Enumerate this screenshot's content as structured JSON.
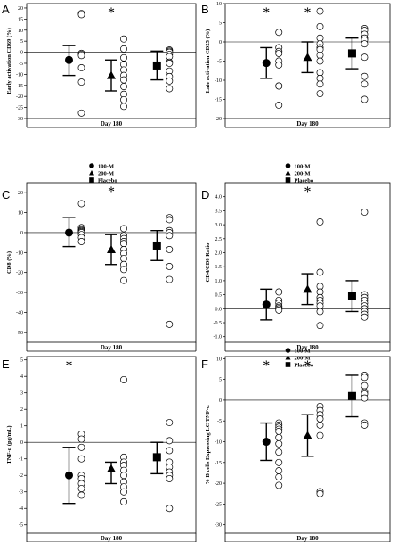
{
  "chart_data": [
    {
      "type": "scatter",
      "panel": "A",
      "ylabel": "Early activation CD69 (%)",
      "xlabel": "Day 180",
      "ylim": [
        -30,
        22
      ],
      "yticks": [
        20,
        15,
        10,
        5,
        0,
        -5,
        -10,
        -15,
        -20,
        -25,
        -30
      ],
      "ytick_labels": [
        "20",
        "15",
        "10",
        "5",
        "0",
        "-5",
        "-10",
        "-15",
        "-20",
        "-25",
        "-30"
      ],
      "stars": [
        1
      ],
      "groups": [
        {
          "name": "100-M",
          "marker": "circle",
          "mean": -3.5,
          "ci": [
            -10.5,
            3.0
          ],
          "points": [
            17.5,
            17.0,
            -0.5,
            -1.0,
            -1.5,
            -7.0,
            -13.5,
            -27.5
          ]
        },
        {
          "name": "200-M",
          "marker": "triangle",
          "mean": -10.5,
          "ci": [
            -17.5,
            -3.5
          ],
          "points": [
            6.0,
            1.5,
            -2.5,
            -5.5,
            -8.0,
            -10.5,
            -12.5,
            -15.5,
            -19.0,
            -21.5,
            -24.5
          ]
        },
        {
          "name": "Placebo",
          "marker": "square",
          "mean": -6.0,
          "ci": [
            -12.5,
            0.5
          ],
          "points": [
            1.0,
            0.5,
            0.0,
            -1.0,
            -2.0,
            -4.5,
            -5.0,
            -8.5,
            -11.0,
            -13.0,
            -16.5
          ]
        }
      ],
      "legend": [
        {
          "marker": "circle",
          "label": "100-M"
        },
        {
          "marker": "triangle",
          "label": "200-M"
        },
        {
          "marker": "square",
          "label": "Placebo"
        }
      ]
    },
    {
      "type": "scatter",
      "panel": "B",
      "ylabel": "Late activation CD25 (%)",
      "xlabel": "Day 180",
      "ylim": [
        -20,
        10
      ],
      "yticks": [
        10,
        5,
        0,
        -5,
        -10,
        -15,
        -20
      ],
      "ytick_labels": [
        "10",
        "5",
        "0",
        "-5",
        "-10",
        "-15",
        "-20"
      ],
      "stars": [
        0,
        1
      ],
      "groups": [
        {
          "name": "100-M",
          "marker": "circle",
          "mean": -5.5,
          "ci": [
            -9.5,
            -1.5
          ],
          "points": [
            2.5,
            -1.5,
            -2.5,
            -3.0,
            -5.0,
            -6.0,
            -11.5,
            -11.5,
            -16.5
          ]
        },
        {
          "name": "200-M",
          "marker": "triangle",
          "mean": -4.0,
          "ci": [
            -8.0,
            0.0
          ],
          "points": [
            8.0,
            4.0,
            1.0,
            -0.5,
            -1.5,
            -2.0,
            -3.5,
            -5.0,
            -8.0,
            -9.5,
            -11.0,
            -13.5
          ]
        },
        {
          "name": "Placebo",
          "marker": "square",
          "mean": -3.0,
          "ci": [
            -7.0,
            1.0
          ],
          "points": [
            3.5,
            3.0,
            2.0,
            1.0,
            0.5,
            -0.5,
            -4.0,
            -9.0,
            -11.0,
            -15.0
          ]
        }
      ],
      "legend": [
        {
          "marker": "circle",
          "label": "100-M"
        },
        {
          "marker": "triangle",
          "label": "200-M"
        },
        {
          "marker": "square",
          "label": "Placebo"
        }
      ]
    },
    {
      "type": "scatter",
      "panel": "C",
      "ylabel": "CD8 (%)",
      "xlabel": "Day 180",
      "ylim": [
        -55,
        25
      ],
      "yticks": [
        20,
        10,
        0,
        -10,
        -20,
        -30,
        -40,
        -50
      ],
      "ytick_labels": [
        "20",
        "10",
        "0",
        "-10",
        "-20",
        "-30",
        "-40",
        "-50"
      ],
      "stars": [
        1
      ],
      "groups": [
        {
          "name": "100-M",
          "marker": "circle",
          "mean": 0.0,
          "ci": [
            -7.0,
            7.5
          ],
          "points": [
            14.5,
            2.5,
            1.5,
            1.0,
            0.5,
            0.0,
            -1.0,
            -2.5,
            -4.5
          ]
        },
        {
          "name": "200-M",
          "marker": "triangle",
          "mean": -8.5,
          "ci": [
            -16.0,
            -1.0
          ],
          "points": [
            2.0,
            -1.5,
            -3.0,
            -4.5,
            -5.5,
            -8.5,
            -10.5,
            -13.0,
            -16.0,
            -18.5,
            -24.0
          ]
        },
        {
          "name": "Placebo",
          "marker": "square",
          "mean": -6.5,
          "ci": [
            -14.0,
            1.0
          ],
          "points": [
            7.5,
            6.5,
            1.0,
            0.0,
            -1.5,
            -8.5,
            -17.0,
            -23.5,
            -46.0
          ]
        }
      ],
      "legend": []
    },
    {
      "type": "scatter",
      "panel": "D",
      "ylabel": "CD4/CD8 Ratio",
      "xlabel": "Day 180",
      "ylim": [
        -1.2,
        4.5
      ],
      "yticks": [
        4.0,
        3.5,
        3.0,
        2.5,
        2.0,
        1.5,
        1.0,
        0.5,
        0.0,
        -0.5,
        -1.0
      ],
      "ytick_labels": [
        "4.0",
        "3.5",
        "3.0",
        "2.5",
        "2.0",
        "1.5",
        "1.0",
        "0.5",
        "0.0",
        "-0.5",
        "-1.0"
      ],
      "stars": [
        1
      ],
      "groups": [
        {
          "name": "100-M",
          "marker": "circle",
          "mean": 0.15,
          "ci": [
            -0.4,
            0.7
          ],
          "points": [
            0.6,
            0.3,
            0.2,
            0.1,
            0.05,
            0.0,
            -0.05
          ]
        },
        {
          "name": "200-M",
          "marker": "triangle",
          "mean": 0.7,
          "ci": [
            0.15,
            1.25
          ],
          "points": [
            3.1,
            1.3,
            0.8,
            0.6,
            0.4,
            0.3,
            0.2,
            0.1,
            -0.1,
            -0.6
          ]
        },
        {
          "name": "Placebo",
          "marker": "square",
          "mean": 0.45,
          "ci": [
            -0.1,
            1.0
          ],
          "points": [
            3.45,
            0.5,
            0.4,
            0.3,
            0.2,
            0.1,
            0.0,
            -0.1,
            -0.2,
            -0.3
          ]
        }
      ],
      "legend": [
        {
          "marker": "circle",
          "label": "100-M"
        },
        {
          "marker": "triangle",
          "label": "200-M"
        },
        {
          "marker": "square",
          "label": "Placebo"
        }
      ]
    },
    {
      "type": "scatter",
      "panel": "E",
      "ylabel": "TNF-α (pg/mL)",
      "xlabel": "Day 180",
      "ylim": [
        -5.5,
        5.2
      ],
      "yticks": [
        5,
        4,
        3,
        2,
        1,
        0,
        -1,
        -2,
        -3,
        -4,
        -5
      ],
      "ytick_labels": [
        "5",
        "4",
        "3",
        "2",
        "1",
        "0",
        "-1",
        "-2",
        "-3",
        "-4",
        "-5"
      ],
      "stars": [
        0
      ],
      "groups": [
        {
          "name": "100-M",
          "marker": "circle",
          "mean": -2.0,
          "ci": [
            -3.7,
            -0.3
          ],
          "points": [
            0.5,
            0.2,
            -0.3,
            -1.0,
            -2.0,
            -2.2,
            -2.5,
            -2.8,
            -3.2
          ]
        },
        {
          "name": "200-M",
          "marker": "triangle",
          "mean": -1.6,
          "ci": [
            -2.5,
            -1.2
          ],
          "points": [
            3.8,
            -0.9,
            -1.2,
            -1.4,
            -1.7,
            -2.0,
            -2.4,
            -2.7,
            -3.0,
            -3.6
          ]
        },
        {
          "name": "Placebo",
          "marker": "square",
          "mean": -0.9,
          "ci": [
            -1.9,
            0.0
          ],
          "points": [
            1.2,
            0.1,
            -0.5,
            -1.2,
            -1.5,
            -1.8,
            -2.0,
            -2.2,
            -4.0
          ]
        }
      ],
      "legend": []
    },
    {
      "type": "scatter",
      "panel": "F",
      "ylabel": "% B cells Expressing LC TNF-α",
      "xlabel": "Day 180",
      "ylim": [
        -32,
        10.5
      ],
      "yticks": [
        10,
        5,
        0,
        -5,
        -10,
        -15,
        -20,
        -25,
        -30
      ],
      "ytick_labels": [
        "10",
        "5",
        "0",
        "-5",
        "-10",
        "-15",
        "-20",
        "-25",
        "-30"
      ],
      "stars": [
        0,
        1
      ],
      "groups": [
        {
          "name": "100-M",
          "marker": "circle",
          "mean": -10.0,
          "ci": [
            -14.5,
            -5.5
          ],
          "points": [
            -5.5,
            -6.0,
            -6.5,
            -7.0,
            -7.5,
            -9.0,
            -10.5,
            -12.5,
            -15.0,
            -17.0,
            -18.5,
            -20.5
          ]
        },
        {
          "name": "200-M",
          "marker": "triangle",
          "mean": -8.5,
          "ci": [
            -13.5,
            -3.5
          ],
          "points": [
            -1.5,
            -2.5,
            -3.5,
            -4.5,
            -6.0,
            -8.5,
            -22.0,
            -22.5
          ]
        },
        {
          "name": "Placebo",
          "marker": "square",
          "mean": 1.0,
          "ci": [
            -4.0,
            6.0
          ],
          "points": [
            6.0,
            5.5,
            3.5,
            2.0,
            1.5,
            0.5,
            -5.5,
            -6.0
          ]
        }
      ],
      "legend": []
    }
  ]
}
